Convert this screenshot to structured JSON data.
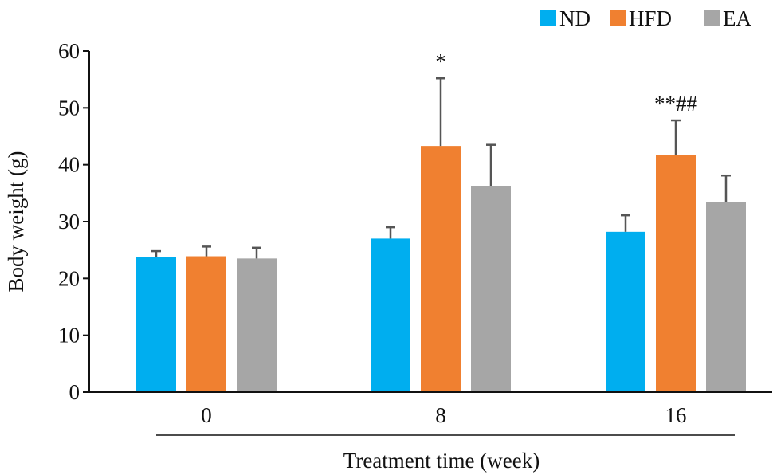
{
  "chart_data": {
    "type": "bar",
    "title": "",
    "xlabel": "Treatment time (week)",
    "ylabel": "Body weight (g)",
    "categories": [
      "0",
      "8",
      "16"
    ],
    "ylim": [
      0,
      60
    ],
    "yticks": [
      "0",
      "10",
      "20",
      "30",
      "40",
      "50",
      "60"
    ],
    "legend_position": "top-right",
    "series": [
      {
        "name": "ND",
        "color": "#00AEEF",
        "values": [
          23.8,
          27.0,
          28.2
        ],
        "errors": [
          1.0,
          2.0,
          2.9
        ]
      },
      {
        "name": "HFD",
        "color": "#F08030",
        "values": [
          23.9,
          43.3,
          41.7
        ],
        "errors": [
          1.7,
          11.9,
          6.1
        ]
      },
      {
        "name": "EA",
        "color": "#A6A6A6",
        "values": [
          23.5,
          36.3,
          33.4
        ],
        "errors": [
          1.9,
          7.2,
          4.7
        ]
      }
    ],
    "annotations": [
      {
        "category": "8",
        "series": "HFD",
        "text": "*"
      },
      {
        "category": "16",
        "series": "HFD",
        "text": "**##"
      }
    ]
  }
}
